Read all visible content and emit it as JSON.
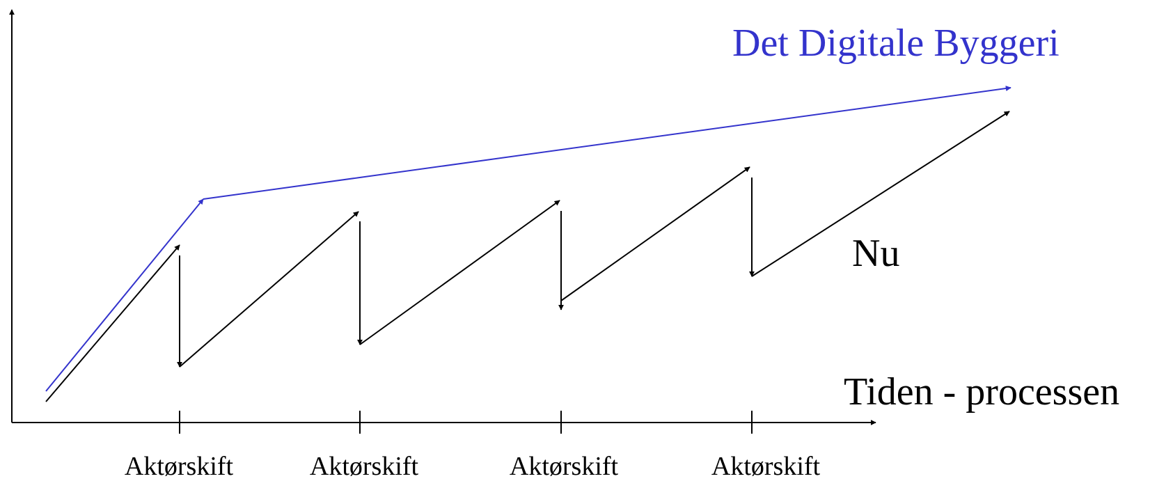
{
  "title": "Det Digitale Byggeri",
  "x_axis_label": "Tiden - processen",
  "current_label": "Nu",
  "tick_labels": [
    "Aktørskift",
    "Aktørskift",
    "Aktørskift",
    "Aktørskift"
  ],
  "colors": {
    "digital": "#3333cc",
    "current": "#000000",
    "axes": "#000000"
  }
}
